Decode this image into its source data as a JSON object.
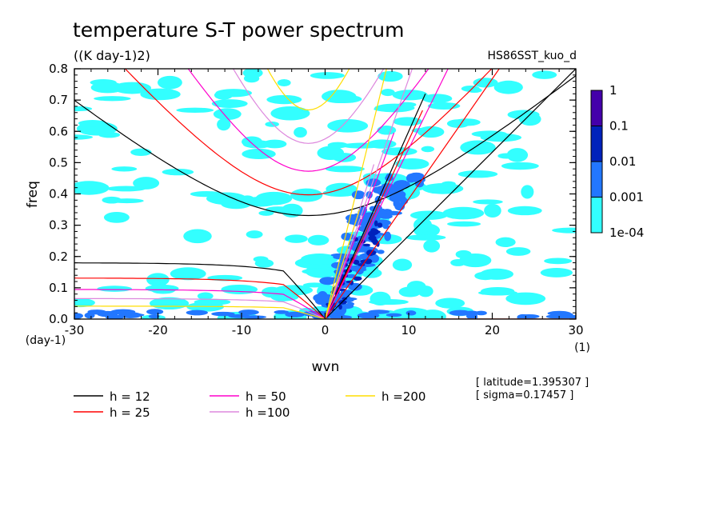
{
  "chart_data": {
    "type": "heatmap",
    "title": "temperature S-T power spectrum",
    "subtitle": "((K day-1)2)",
    "run_label": "HS86SST_kuo_d",
    "xlabel": "wvn",
    "ylabel": "freq",
    "x_unit": "(1)",
    "y_unit": "(day-1)",
    "xlim": [
      -30,
      30
    ],
    "ylim": [
      0,
      0.8
    ],
    "x_ticks": [
      "-30",
      "-20",
      "-10",
      "0",
      "10",
      "20",
      "30"
    ],
    "y_ticks": [
      "0.0",
      "0.1",
      "0.2",
      "0.3",
      "0.4",
      "0.5",
      "0.6",
      "0.7",
      "0.8"
    ],
    "scale": "log",
    "colorbar": {
      "levels": [
        "1e-04",
        "0.001",
        "0.01",
        "0.1",
        "1"
      ],
      "colors": [
        "#33ffff",
        "#2277ff",
        "#0022bb",
        "#4400aa"
      ]
    },
    "dispersion_curves": [
      {
        "name": "h = 12",
        "color": "#000000"
      },
      {
        "name": "h = 25",
        "color": "#ff0000"
      },
      {
        "name": "h = 50",
        "color": "#ff00cc"
      },
      {
        "name": "h =100",
        "color": "#dd88dd"
      },
      {
        "name": "h =200",
        "color": "#ffdd00"
      }
    ],
    "info": [
      "[ latitude=1.395307 ]",
      "[ sigma=0.17457 ]"
    ]
  }
}
